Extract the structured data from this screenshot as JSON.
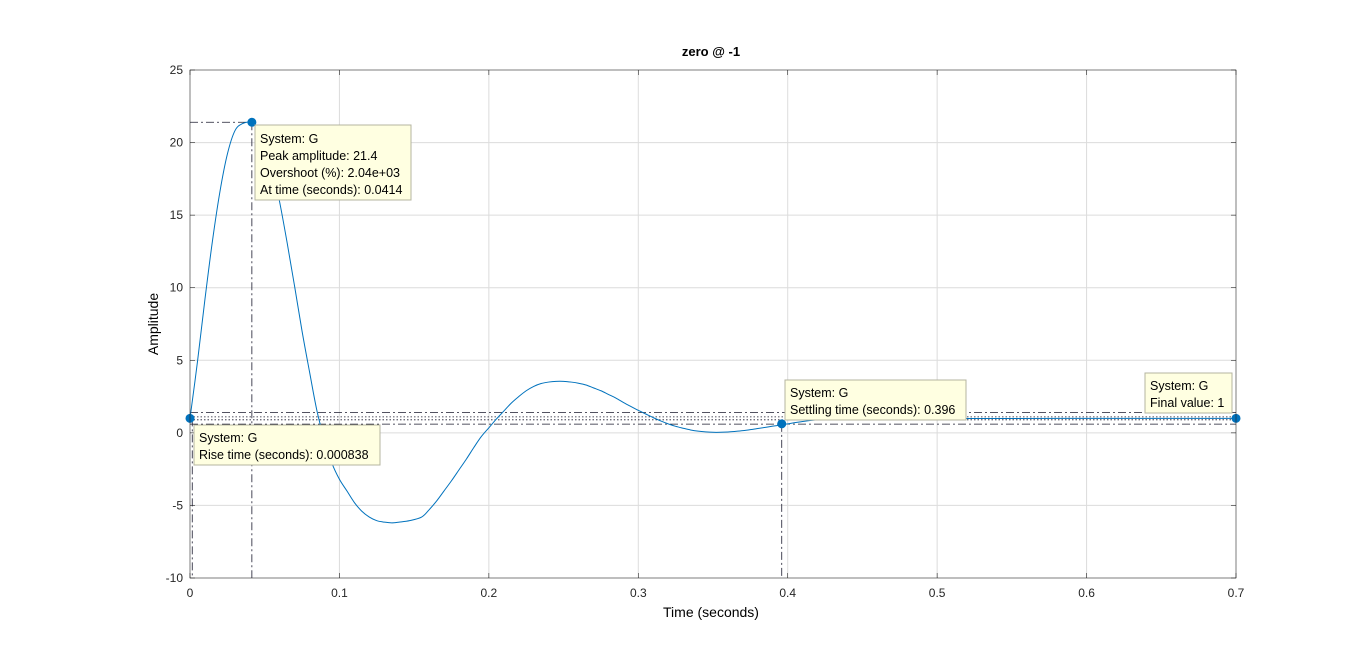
{
  "chart_data": {
    "type": "line",
    "title": "zero @ -1",
    "xlabel": "Time (seconds)",
    "ylabel": "Amplitude",
    "xlim": [
      0,
      0.7
    ],
    "ylim": [
      -10,
      25
    ],
    "xticks": [
      0,
      0.1,
      0.2,
      0.3,
      0.4,
      0.5,
      0.6,
      0.7
    ],
    "xtick_labels": [
      "0",
      "0.1",
      "0.2",
      "0.3",
      "0.4",
      "0.5",
      "0.6",
      "0.7"
    ],
    "yticks": [
      -10,
      -5,
      0,
      5,
      10,
      15,
      20,
      25
    ],
    "ytick_labels": [
      "-10",
      "-5",
      "0",
      "5",
      "10",
      "15",
      "20",
      "25"
    ],
    "grid": true,
    "colors": {
      "line": "#0072BD",
      "datatip_bg": "#FFFFE1",
      "datatip_border": "#B4B4A0",
      "grid": "#DCDCDC"
    },
    "series": [
      {
        "x": [
          0,
          0.005,
          0.01,
          0.015,
          0.02,
          0.025,
          0.03,
          0.035,
          0.0414,
          0.045,
          0.05,
          0.055,
          0.06,
          0.065,
          0.07,
          0.075,
          0.08,
          0.085,
          0.09,
          0.095,
          0.1,
          0.105,
          0.11,
          0.115,
          0.12,
          0.125,
          0.13,
          0.135,
          0.14,
          0.147,
          0.155,
          0.16,
          0.165,
          0.17,
          0.175,
          0.18,
          0.185,
          0.19,
          0.195,
          0.2,
          0.205,
          0.21,
          0.215,
          0.22,
          0.225,
          0.23,
          0.235,
          0.24,
          0.245,
          0.25,
          0.255,
          0.26,
          0.265,
          0.27,
          0.275,
          0.28,
          0.285,
          0.29,
          0.295,
          0.3,
          0.305,
          0.31,
          0.315,
          0.32,
          0.325,
          0.33,
          0.335,
          0.34,
          0.345,
          0.35,
          0.355,
          0.36,
          0.365,
          0.37,
          0.375,
          0.38,
          0.385,
          0.39,
          0.396,
          0.4,
          0.41,
          0.42,
          0.43,
          0.44,
          0.45,
          0.46,
          0.47,
          0.48,
          0.5,
          0.52,
          0.55,
          0.6,
          0.65,
          0.7
        ],
        "y": [
          1.0,
          4.9,
          9.2,
          13.2,
          16.6,
          19.2,
          20.8,
          21.3,
          21.4,
          21.0,
          20.0,
          18.3,
          15.9,
          13.1,
          10.1,
          7.0,
          4.2,
          1.5,
          -0.5,
          -2.1,
          -3.2,
          -4.0,
          -4.8,
          -5.4,
          -5.8,
          -6.05,
          -6.15,
          -6.2,
          -6.15,
          -6.05,
          -5.8,
          -5.3,
          -4.7,
          -4.0,
          -3.3,
          -2.55,
          -1.8,
          -1.0,
          -0.25,
          0.35,
          0.95,
          1.5,
          2.05,
          2.5,
          2.9,
          3.2,
          3.4,
          3.5,
          3.55,
          3.55,
          3.5,
          3.42,
          3.3,
          3.1,
          2.9,
          2.65,
          2.4,
          2.1,
          1.82,
          1.55,
          1.3,
          1.05,
          0.82,
          0.62,
          0.45,
          0.32,
          0.2,
          0.12,
          0.07,
          0.04,
          0.04,
          0.06,
          0.1,
          0.15,
          0.22,
          0.3,
          0.38,
          0.46,
          0.55,
          0.62,
          0.78,
          0.9,
          0.98,
          1.04,
          1.07,
          1.08,
          1.07,
          1.05,
          1.01,
          0.99,
          0.99,
          1.0,
          1.0,
          1.0
        ]
      }
    ],
    "characteristics": {
      "peak": {
        "time": 0.0414,
        "amplitude": 21.4
      },
      "rise_start": {
        "time": 0,
        "amplitude": 1.0
      },
      "settling": {
        "time": 0.396,
        "amplitude": 0.62
      },
      "final": {
        "time": 0.7,
        "amplitude": 1.0
      },
      "settling_band": [
        0.6,
        1.4
      ],
      "dotted_levels": [
        0.9,
        1.1
      ]
    },
    "datatips": [
      {
        "lines": [
          "System: G",
          "Peak amplitude: 21.4",
          "Overshoot (%): 2.04e+03",
          "At time (seconds): 0.0414"
        ]
      },
      {
        "lines": [
          "System: G",
          "Rise time (seconds): 0.000838"
        ]
      },
      {
        "lines": [
          "System: G",
          "Settling time (seconds): 0.396"
        ]
      },
      {
        "lines": [
          "System: G",
          "Final value: 1"
        ]
      }
    ]
  }
}
